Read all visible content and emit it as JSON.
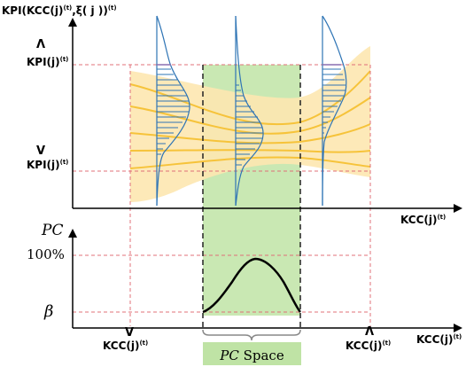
{
  "top_chart": {
    "y_axis_label": "KPI(KCC(j)",
    "y_axis_label_sup": "(t)",
    "y_axis_label_mid": ",ξ( j ))",
    "y_axis_label_sup2": "(t)",
    "kpi_upper": "KPI(j)",
    "kpi_upper_sup": "(t)",
    "kpi_upper_hat": "Λ",
    "kpi_lower": "KPI(j)",
    "kpi_lower_sup": "(t)",
    "kpi_lower_hat": "V",
    "x_axis_label": "KCC(j)",
    "x_axis_label_sup": "(t)"
  },
  "bottom_chart": {
    "y_axis_label": "PC",
    "tick_100": "100%",
    "tick_beta": "β",
    "kcc_lower": "KCC(j)",
    "kcc_lower_sup": "(t)",
    "kcc_lower_hat": "V",
    "kcc_upper": "KCC(j)",
    "kcc_upper_sup": "(t)",
    "kcc_upper_hat": "Λ",
    "x_axis_label": "KCC(j)",
    "x_axis_label_sup": "(t)"
  },
  "pc_space": {
    "label_italic": "PC",
    "label_rest": " Space"
  },
  "colors": {
    "band_fill": "#fde7b0",
    "band_line": "#f6c33a",
    "pc_space_fill": "#c9e8b3",
    "distribution_line": "#2e74b5",
    "guide_red": "#e0707a"
  }
}
